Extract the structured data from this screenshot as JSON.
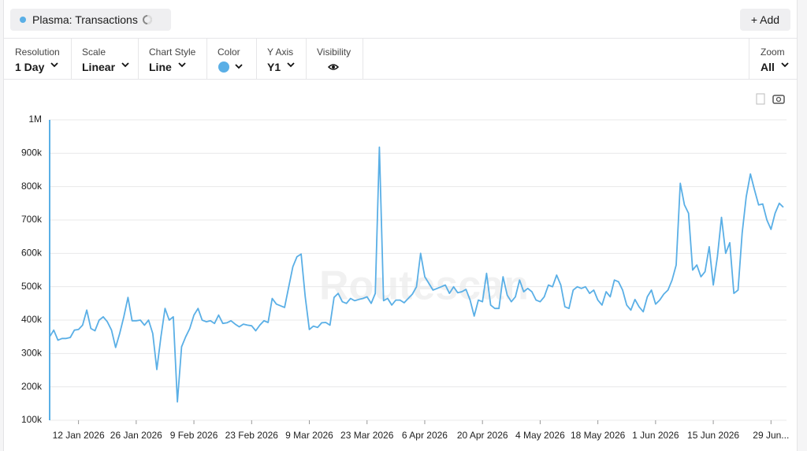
{
  "ui": {
    "add_button": "+ Add",
    "watermark": "Routescan",
    "controls": [
      {
        "caption": "Resolution",
        "value": "1 Day"
      },
      {
        "caption": "Scale",
        "value": "Linear"
      },
      {
        "caption": "Chart Style",
        "value": "Line"
      },
      {
        "caption": "Color"
      },
      {
        "caption": "Y Axis",
        "value": "Y1"
      },
      {
        "caption": "Visibility"
      },
      {
        "caption": "Zoom",
        "value": "All"
      }
    ]
  },
  "chart_data": {
    "type": "line",
    "x": [
      "2026-01-05",
      "2026-01-06",
      "2026-01-07",
      "2026-01-08",
      "2026-01-09",
      "2026-01-10",
      "2026-01-11",
      "2026-01-12",
      "2026-01-13",
      "2026-01-14",
      "2026-01-15",
      "2026-01-16",
      "2026-01-17",
      "2026-01-18",
      "2026-01-19",
      "2026-01-20",
      "2026-01-21",
      "2026-01-22",
      "2026-01-23",
      "2026-01-24",
      "2026-01-25",
      "2026-01-26",
      "2026-01-27",
      "2026-01-28",
      "2026-01-29",
      "2026-01-30",
      "2026-01-31",
      "2026-02-01",
      "2026-02-02",
      "2026-02-03",
      "2026-02-04",
      "2026-02-05",
      "2026-02-06",
      "2026-02-07",
      "2026-02-08",
      "2026-02-09",
      "2026-02-10",
      "2026-02-11",
      "2026-02-12",
      "2026-02-13",
      "2026-02-14",
      "2026-02-15",
      "2026-02-16",
      "2026-02-17",
      "2026-02-18",
      "2026-02-19",
      "2026-02-20",
      "2026-02-21",
      "2026-02-22",
      "2026-02-23",
      "2026-02-24",
      "2026-02-25",
      "2026-02-26",
      "2026-02-27",
      "2026-02-28",
      "2026-03-01",
      "2026-03-02",
      "2026-03-03",
      "2026-03-04",
      "2026-03-05",
      "2026-03-06",
      "2026-03-07",
      "2026-03-08",
      "2026-03-09",
      "2026-03-10",
      "2026-03-11",
      "2026-03-12",
      "2026-03-13",
      "2026-03-14",
      "2026-03-15",
      "2026-03-16",
      "2026-03-17",
      "2026-03-18",
      "2026-03-19",
      "2026-03-20",
      "2026-03-21",
      "2026-03-22",
      "2026-03-23",
      "2026-03-24",
      "2026-03-25",
      "2026-03-26",
      "2026-03-27",
      "2026-03-28",
      "2026-03-29",
      "2026-03-30",
      "2026-03-31",
      "2026-04-01",
      "2026-04-02",
      "2026-04-03",
      "2026-04-04",
      "2026-04-05",
      "2026-04-06",
      "2026-04-07",
      "2026-04-08",
      "2026-04-09",
      "2026-04-10",
      "2026-04-11",
      "2026-04-12",
      "2026-04-13",
      "2026-04-14",
      "2026-04-15",
      "2026-04-16",
      "2026-04-17",
      "2026-04-18",
      "2026-04-19",
      "2026-04-20",
      "2026-04-21",
      "2026-04-22",
      "2026-04-23",
      "2026-04-24",
      "2026-04-25",
      "2026-04-26",
      "2026-04-27",
      "2026-04-28",
      "2026-04-29",
      "2026-04-30",
      "2026-05-01",
      "2026-05-02",
      "2026-05-03",
      "2026-05-04",
      "2026-05-05",
      "2026-05-06",
      "2026-05-07",
      "2026-05-08",
      "2026-05-09",
      "2026-05-10",
      "2026-05-11",
      "2026-05-12",
      "2026-05-13",
      "2026-05-14",
      "2026-05-15",
      "2026-05-16",
      "2026-05-17",
      "2026-05-18",
      "2026-05-19",
      "2026-05-20",
      "2026-05-21",
      "2026-05-22",
      "2026-05-23",
      "2026-05-24",
      "2026-05-25",
      "2026-05-26",
      "2026-05-27",
      "2026-05-28",
      "2026-05-29",
      "2026-05-30",
      "2026-05-31",
      "2026-06-01",
      "2026-06-02",
      "2026-06-03",
      "2026-06-04",
      "2026-06-05",
      "2026-06-06",
      "2026-06-07",
      "2026-06-08",
      "2026-06-09",
      "2026-06-10",
      "2026-06-11",
      "2026-06-12",
      "2026-06-13",
      "2026-06-14",
      "2026-06-15",
      "2026-06-16",
      "2026-06-17",
      "2026-06-18",
      "2026-06-19",
      "2026-06-20",
      "2026-06-21",
      "2026-06-22",
      "2026-06-23",
      "2026-06-24",
      "2026-06-25",
      "2026-06-26",
      "2026-06-27",
      "2026-06-28",
      "2026-06-29",
      "2026-06-30",
      "2026-07-01",
      "2026-07-02"
    ],
    "series": [
      {
        "name": "Plasma: Transactions",
        "color": "#5aafe6",
        "values": [
          350000,
          370000,
          340000,
          345000,
          345000,
          348000,
          370000,
          372000,
          385000,
          430000,
          375000,
          368000,
          400000,
          410000,
          395000,
          370000,
          318000,
          360000,
          410000,
          468000,
          398000,
          398000,
          400000,
          385000,
          400000,
          360000,
          252000,
          350000,
          435000,
          400000,
          410000,
          155000,
          320000,
          350000,
          375000,
          415000,
          435000,
          400000,
          395000,
          398000,
          390000,
          415000,
          390000,
          392000,
          398000,
          388000,
          380000,
          388000,
          385000,
          383000,
          368000,
          385000,
          398000,
          393000,
          465000,
          448000,
          443000,
          438000,
          500000,
          560000,
          590000,
          598000,
          470000,
          372000,
          382000,
          378000,
          392000,
          393000,
          385000,
          468000,
          480000,
          455000,
          450000,
          465000,
          458000,
          462000,
          465000,
          470000,
          450000,
          480000,
          918000,
          458000,
          465000,
          445000,
          460000,
          460000,
          452000,
          465000,
          478000,
          500000,
          600000,
          530000,
          510000,
          490000,
          495000,
          500000,
          505000,
          480000,
          500000,
          482000,
          485000,
          492000,
          460000,
          412000,
          460000,
          455000,
          540000,
          445000,
          435000,
          435000,
          530000,
          475000,
          455000,
          470000,
          520000,
          485000,
          495000,
          485000,
          460000,
          455000,
          470000,
          505000,
          500000,
          535000,
          505000,
          440000,
          435000,
          490000,
          500000,
          495000,
          500000,
          480000,
          490000,
          460000,
          445000,
          485000,
          470000,
          520000,
          515000,
          490000,
          445000,
          430000,
          462000,
          440000,
          425000,
          470000,
          490000,
          448000,
          460000,
          478000,
          490000,
          520000,
          565000,
          810000,
          745000,
          720000,
          550000,
          565000,
          530000,
          545000,
          620000,
          505000,
          590000,
          708000,
          600000,
          632000,
          480000,
          490000,
          660000,
          770000,
          838000,
          790000,
          745000,
          748000,
          700000,
          672000,
          720000,
          750000,
          738000
        ]
      }
    ],
    "xlim": [
      "2026-01-05",
      "2026-07-02"
    ],
    "xticks": [
      {
        "value": "2026-01-12",
        "label": "12 Jan 2026"
      },
      {
        "value": "2026-01-26",
        "label": "26 Jan 2026"
      },
      {
        "value": "2026-02-09",
        "label": "9 Feb 2026"
      },
      {
        "value": "2026-02-23",
        "label": "23 Feb 2026"
      },
      {
        "value": "2026-03-09",
        "label": "9 Mar 2026"
      },
      {
        "value": "2026-03-23",
        "label": "23 Mar 2026"
      },
      {
        "value": "2026-04-06",
        "label": "6 Apr 2026"
      },
      {
        "value": "2026-04-20",
        "label": "20 Apr 2026"
      },
      {
        "value": "2026-05-04",
        "label": "4 May 2026"
      },
      {
        "value": "2026-05-18",
        "label": "18 May 2026"
      },
      {
        "value": "2026-06-01",
        "label": "1 Jun 2026"
      },
      {
        "value": "2026-06-15",
        "label": "15 Jun 2026"
      },
      {
        "value": "2026-06-29",
        "label": "29 Jun..."
      }
    ],
    "ylim": [
      100000,
      1000000
    ],
    "yticks": [
      {
        "value": 100000,
        "label": "100k"
      },
      {
        "value": 200000,
        "label": "200k"
      },
      {
        "value": 300000,
        "label": "300k"
      },
      {
        "value": 400000,
        "label": "400k"
      },
      {
        "value": 500000,
        "label": "500k"
      },
      {
        "value": 600000,
        "label": "600k"
      },
      {
        "value": 700000,
        "label": "700k"
      },
      {
        "value": 800000,
        "label": "800k"
      },
      {
        "value": 900000,
        "label": "900k"
      },
      {
        "value": 1000000,
        "label": "1M"
      }
    ],
    "grid": true
  }
}
